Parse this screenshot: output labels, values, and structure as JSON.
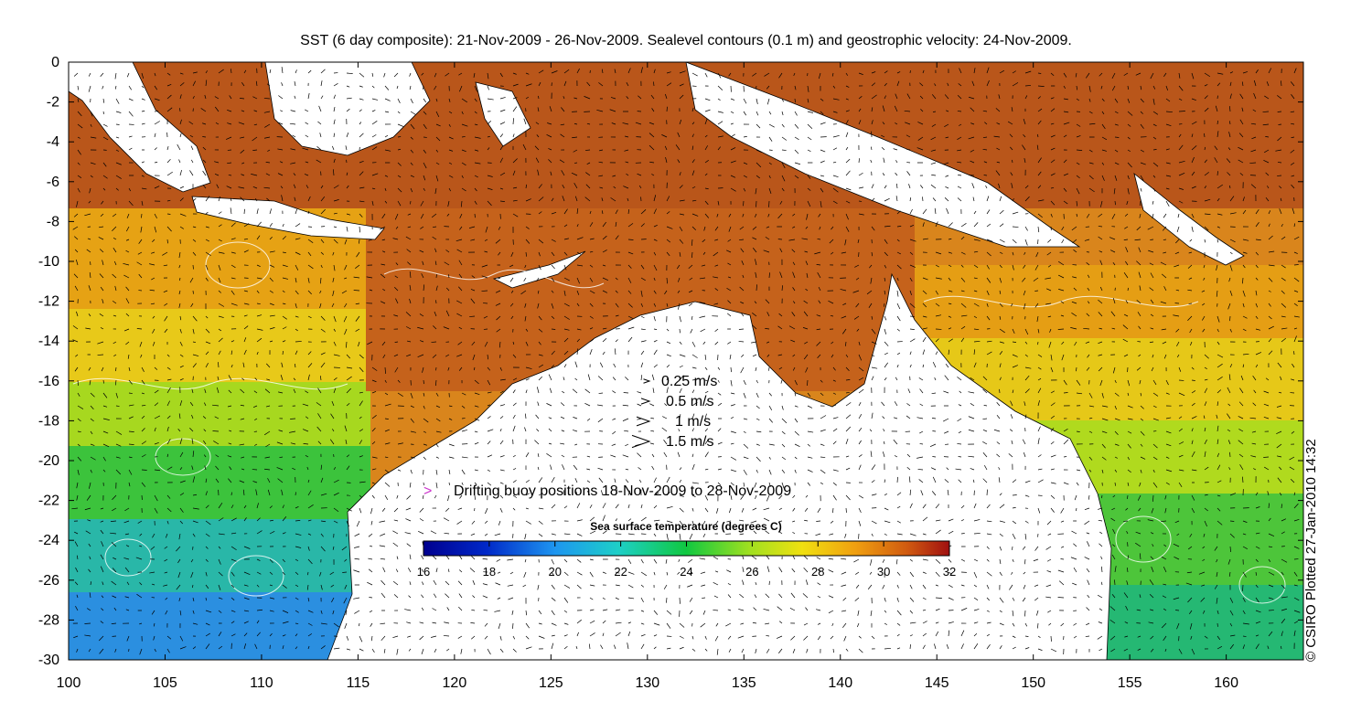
{
  "title": "SST (6 day composite): 21-Nov-2009 - 26-Nov-2009. Sealevel contours (0.1 m) and geostrophic velocity: 24-Nov-2009.",
  "credit": "© CSIRO Plotted 27-Jan-2010 14:32",
  "axes": {
    "x_ticks": [
      "100",
      "105",
      "110",
      "115",
      "120",
      "125",
      "130",
      "135",
      "140",
      "145",
      "150",
      "155",
      "160"
    ],
    "y_ticks": [
      "0",
      "-2",
      "-4",
      "-6",
      "-8",
      "-10",
      "-12",
      "-14",
      "-16",
      "-18",
      "-20",
      "-22",
      "-24",
      "-26",
      "-28",
      "-30"
    ],
    "x_range": [
      100,
      164
    ],
    "y_range": [
      -30,
      0
    ]
  },
  "velocity_legend": [
    {
      "label": "0.25 m/s",
      "speed": 0.25
    },
    {
      "label": "0.5 m/s",
      "speed": 0.5
    },
    {
      "label": "1 m/s",
      "speed": 1
    },
    {
      "label": "1.5 m/s",
      "speed": 1.5
    }
  ],
  "buoy_legend": {
    "symbol": ">",
    "label": "Drifting buoy positions 18-Nov-2009 to 28-Nov-2009",
    "color": "#cc33cc"
  },
  "colorbar": {
    "title": "Sea surface temperature (degrees C)",
    "ticks": [
      "16",
      "18",
      "20",
      "22",
      "24",
      "26",
      "28",
      "30",
      "32"
    ],
    "range": [
      16,
      32
    ]
  },
  "colors": {
    "land": "#ffffff",
    "contour": "#ffffff",
    "arrow": "#000000",
    "coast": "#000000",
    "buoy": "#cc33cc"
  }
}
